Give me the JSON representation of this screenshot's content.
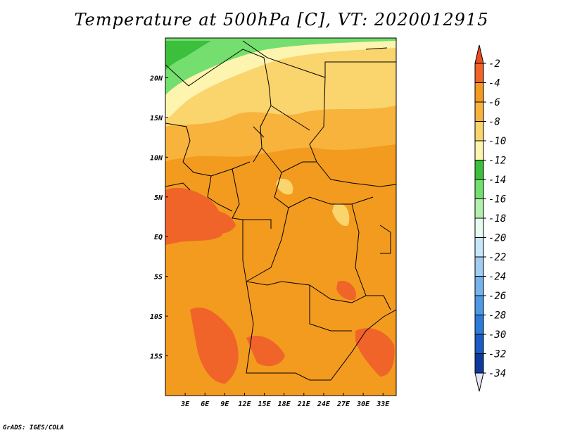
{
  "title": "Temperature at 500hPa [C], VT: 2020012915",
  "footer": "GrADS: IGES/COLA",
  "map": {
    "lat_ticks": [
      "20N",
      "15N",
      "10N",
      "5N",
      "EQ",
      "5S",
      "10S",
      "15S"
    ],
    "lon_ticks": [
      "3E",
      "6E",
      "9E",
      "12E",
      "15E",
      "18E",
      "21E",
      "24E",
      "27E",
      "30E",
      "33E"
    ],
    "lat_values": [
      20,
      15,
      10,
      5,
      0,
      -5,
      -10,
      -15
    ],
    "lon_values": [
      3,
      6,
      9,
      12,
      15,
      18,
      21,
      24,
      27,
      30,
      33
    ],
    "extent": {
      "lon_min": 0,
      "lon_max": 35,
      "lat_min": -20,
      "lat_max": 25
    }
  },
  "colorbar": {
    "labels": [
      "-2",
      "-4",
      "-6",
      "-8",
      "-10",
      "-12",
      "-14",
      "-16",
      "-18",
      "-20",
      "-22",
      "-24",
      "-26",
      "-28",
      "-30",
      "-32",
      "-34"
    ],
    "colors": [
      "#f0642a",
      "#f39b1e",
      "#f7b33c",
      "#fad46c",
      "#fdf4b0",
      "#3cbf3c",
      "#74df6e",
      "#b4f0ad",
      "#e6fbf0",
      "#c8e6fa",
      "#a2cdf2",
      "#76b3ec",
      "#4e99e4",
      "#2c7bd8",
      "#1a5bc4",
      "#0e3a9e",
      "#0a1678"
    ],
    "top_color": "#f04c20",
    "bottom_color": "#e6e6fa"
  }
}
